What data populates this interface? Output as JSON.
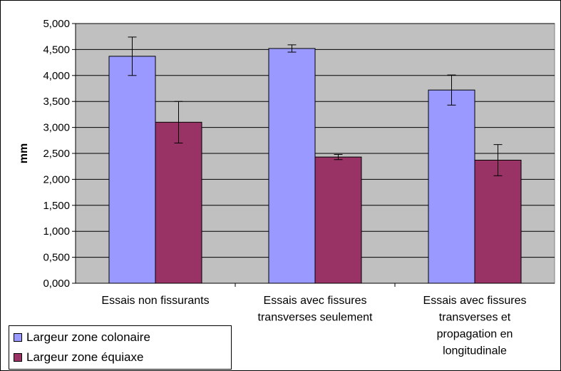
{
  "chart_data": {
    "type": "bar",
    "ylabel": "mm",
    "ylim": [
      0,
      5
    ],
    "yticks": [
      "0,000",
      "0,500",
      "1,000",
      "1,500",
      "2,000",
      "2,500",
      "3,000",
      "3,500",
      "4,000",
      "4,500",
      "5,000"
    ],
    "categories": [
      [
        "Essais non fissurants"
      ],
      [
        "Essais avec fissures",
        "transverses seulement"
      ],
      [
        "Essais avec fissures",
        "transverses et",
        "propagation en",
        "longitudinale"
      ]
    ],
    "series": [
      {
        "name": "Largeur zone colonaire",
        "color": "#9999ff",
        "values": [
          4.37,
          4.52,
          3.72
        ],
        "errors": [
          0.37,
          0.07,
          0.29
        ]
      },
      {
        "name": "Largeur zone équiaxe",
        "color": "#993366",
        "values": [
          3.1,
          2.43,
          2.37
        ],
        "errors": [
          0.4,
          0.05,
          0.3
        ]
      }
    ],
    "grid": true,
    "plot_background": "#c0c0c0",
    "legend_position": "bottom-left"
  }
}
